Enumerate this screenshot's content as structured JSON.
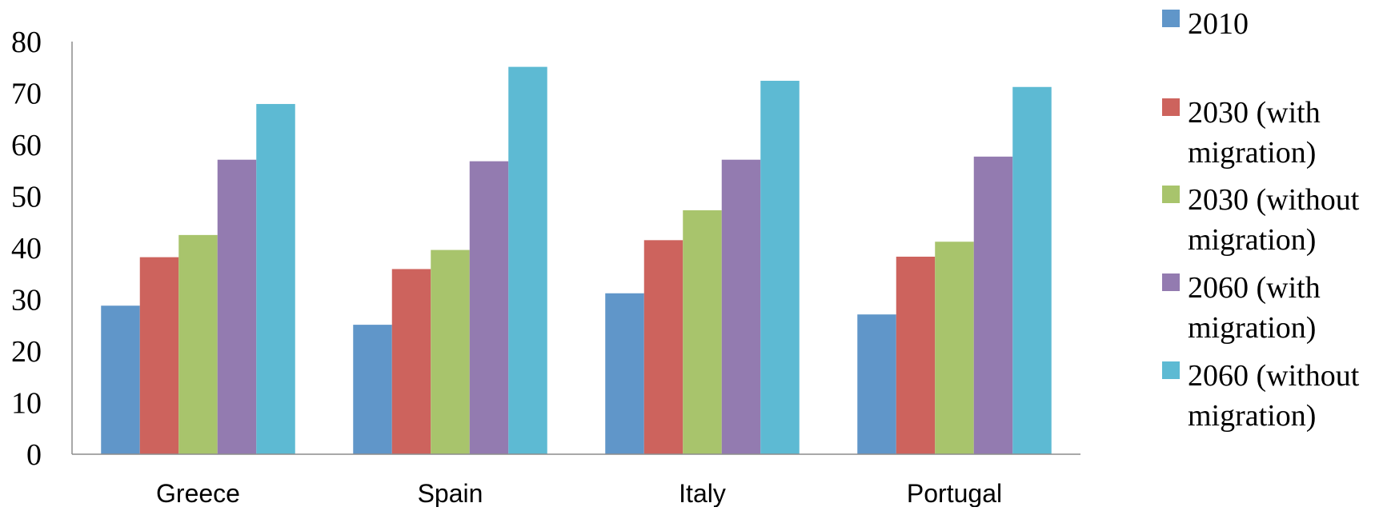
{
  "chart_data": {
    "type": "bar",
    "categories": [
      "Greece",
      "Spain",
      "Italy",
      "Portugal"
    ],
    "series": [
      {
        "name": "2010",
        "legend_lines": [
          "2010"
        ],
        "color": "#6096C9",
        "values": [
          28.8,
          25.1,
          31.2,
          27.1
        ]
      },
      {
        "name": "2030 (with migration)",
        "legend_lines": [
          "2030 (with",
          "migration)"
        ],
        "color": "#CD635D",
        "values": [
          38.2,
          35.9,
          41.5,
          38.3
        ]
      },
      {
        "name": "2030 (without migration)",
        "legend_lines": [
          "2030 (without",
          "migration)"
        ],
        "color": "#A8C46C",
        "values": [
          42.5,
          39.6,
          47.3,
          41.2
        ]
      },
      {
        "name": "2060 (with migration)",
        "legend_lines": [
          "2060 (with",
          "migration)"
        ],
        "color": "#937BB0",
        "values": [
          57.1,
          56.8,
          57.1,
          57.7
        ]
      },
      {
        "name": "2060 (without migration)",
        "legend_lines": [
          "2060 (without",
          "migration)"
        ],
        "color": "#5DBAD3",
        "values": [
          67.9,
          75.1,
          72.4,
          71.2
        ]
      }
    ],
    "yticks": [
      "0",
      "10",
      "20",
      "30",
      "40",
      "50",
      "60",
      "70",
      "80"
    ],
    "ylim": [
      0,
      80
    ],
    "grid": false,
    "legend_position": "right",
    "title": "",
    "xlabel": "",
    "ylabel": ""
  }
}
